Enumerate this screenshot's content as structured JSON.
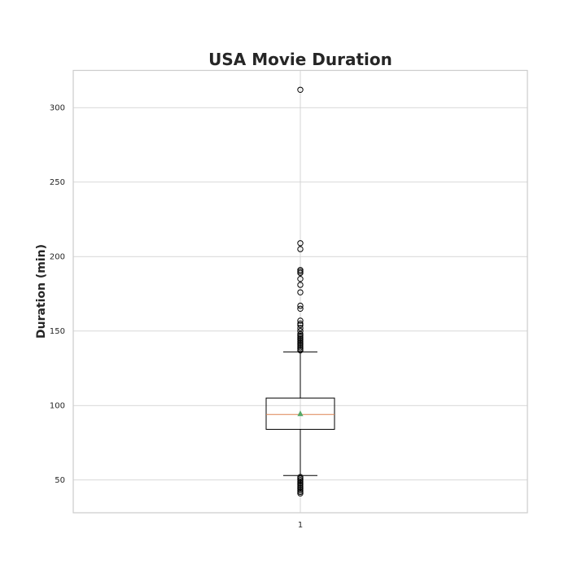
{
  "chart_data": {
    "type": "box",
    "title": "USA Movie Duration",
    "xlabel": "",
    "ylabel": "Duration (min)",
    "categories": [
      "1"
    ],
    "ylim": [
      28,
      325
    ],
    "yticks": [
      50,
      100,
      150,
      200,
      250,
      300
    ],
    "grid": true,
    "show_mean": true,
    "boxes": [
      {
        "label": "1",
        "whislo": 53,
        "q1": 84,
        "med": 94,
        "mean": 94.5,
        "q3": 105,
        "whishi": 136,
        "fliers": [
          41,
          42,
          43,
          44,
          45,
          46,
          47,
          48,
          49,
          50,
          51,
          52,
          137,
          138,
          139,
          140,
          141,
          142,
          143,
          144,
          145,
          146,
          147,
          148,
          150,
          152,
          154,
          155,
          157,
          165,
          167,
          176,
          181,
          185,
          189,
          190,
          191,
          205,
          209,
          312
        ]
      }
    ]
  }
}
